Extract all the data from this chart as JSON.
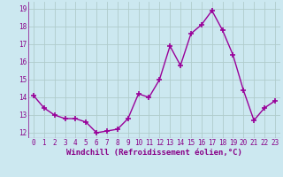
{
  "x": [
    0,
    1,
    2,
    3,
    4,
    5,
    6,
    7,
    8,
    9,
    10,
    11,
    12,
    13,
    14,
    15,
    16,
    17,
    18,
    19,
    20,
    21,
    22,
    23
  ],
  "y": [
    14.1,
    13.4,
    13.0,
    12.8,
    12.8,
    12.6,
    12.0,
    12.1,
    12.2,
    12.8,
    14.2,
    14.0,
    15.0,
    16.9,
    15.8,
    17.6,
    18.1,
    18.9,
    17.8,
    16.4,
    14.4,
    12.7,
    13.4,
    13.8
  ],
  "line_color": "#990099",
  "marker": "+",
  "markersize": 4,
  "linewidth": 1.0,
  "bg_color": "#cce8f0",
  "grid_color": "#b0cccc",
  "xlabel": "Windchill (Refroidissement éolien,°C)",
  "xlabel_fontsize": 6.5,
  "tick_fontsize": 5.5,
  "ylim": [
    11.7,
    19.4
  ],
  "xlim": [
    -0.5,
    23.5
  ],
  "yticks": [
    12,
    13,
    14,
    15,
    16,
    17,
    18,
    19
  ],
  "xticks": [
    0,
    1,
    2,
    3,
    4,
    5,
    6,
    7,
    8,
    9,
    10,
    11,
    12,
    13,
    14,
    15,
    16,
    17,
    18,
    19,
    20,
    21,
    22,
    23
  ]
}
